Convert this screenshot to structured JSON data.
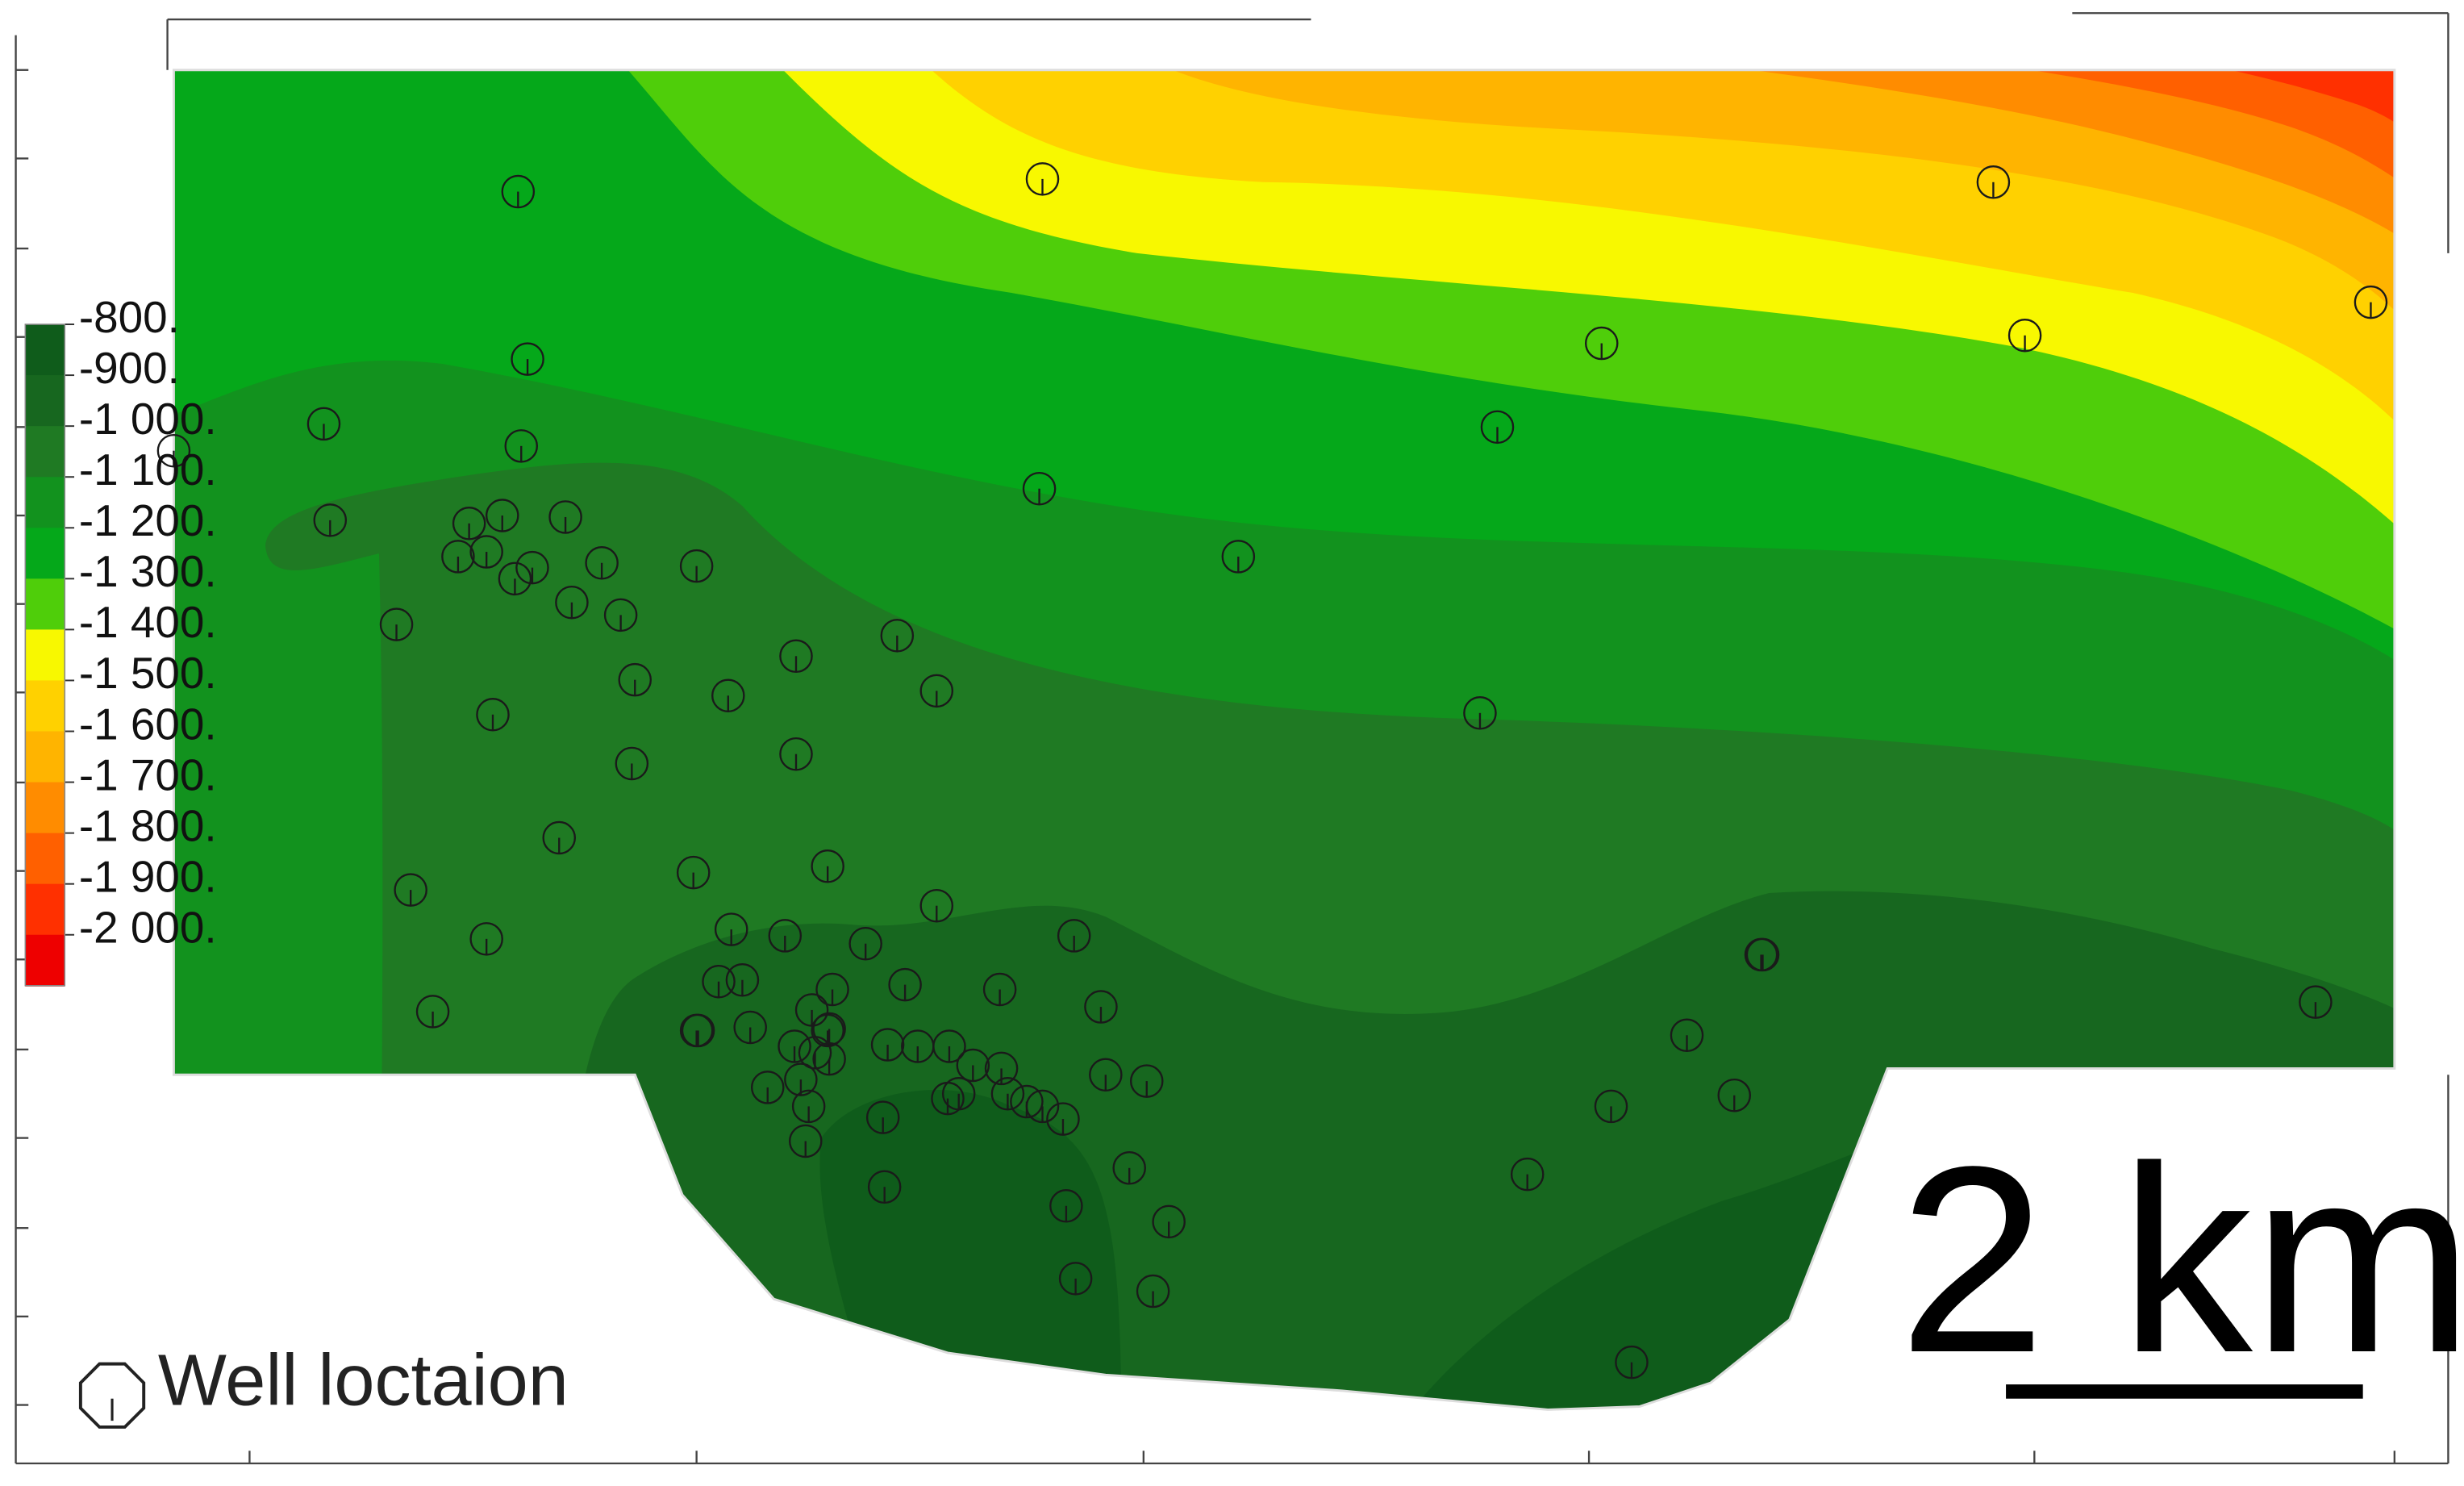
{
  "legend": {
    "levels": [
      {
        "label": "-800.",
        "color": "#0f5c1b"
      },
      {
        "label": "-900.",
        "color": "#17671f"
      },
      {
        "label": "-1 000.",
        "color": "#1f7a23"
      },
      {
        "label": "-1 100.",
        "color": "#12921e"
      },
      {
        "label": "-1 200.",
        "color": "#05a81a"
      },
      {
        "label": "-1 300.",
        "color": "#4fce0a"
      },
      {
        "label": "-1 400.",
        "color": "#f8f800"
      },
      {
        "label": "-1 500.",
        "color": "#ffd100"
      },
      {
        "label": "-1 600.",
        "color": "#ffb400"
      },
      {
        "label": "-1 700.",
        "color": "#ff8c00"
      },
      {
        "label": "-1 800.",
        "color": "#ff6000"
      },
      {
        "label": "-1 900.",
        "color": "#ff3000"
      },
      {
        "label": "-2 000.",
        "color": "#ee0000"
      }
    ]
  },
  "scale_bar": {
    "label": "2 km"
  },
  "well_key": {
    "label": "Well loctaion",
    "icon": "well-location-icon"
  },
  "wells": {
    "count": 93
  }
}
